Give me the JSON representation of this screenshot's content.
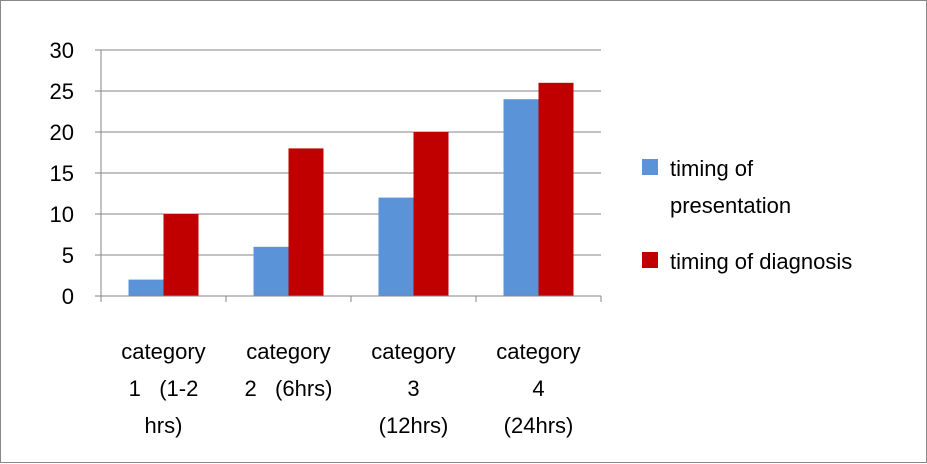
{
  "chart_data": {
    "type": "bar",
    "categories": [
      "category 1 (1-2 hrs)",
      "category 2 (6hrs)",
      "category 3 (12hrs)",
      "category 4 (24hrs)"
    ],
    "category_label_lines": [
      [
        "category",
        "1   (1-2",
        "hrs)"
      ],
      [
        "category",
        "2   (6hrs)"
      ],
      [
        "category",
        "3",
        "(12hrs)"
      ],
      [
        "category",
        "4",
        "(24hrs)"
      ]
    ],
    "series": [
      {
        "name": "timing of presentation",
        "legend_lines": [
          "timing of",
          "presentation"
        ],
        "color": "#5b93d9",
        "values": [
          2,
          6,
          12,
          24
        ]
      },
      {
        "name": "timing of diagnosis",
        "legend_lines": [
          "timing of diagnosis"
        ],
        "color": "#c00000",
        "values": [
          10,
          18,
          20,
          26
        ]
      }
    ],
    "yticks": [
      0,
      5,
      10,
      15,
      20,
      25,
      30
    ],
    "ylim": [
      0,
      30
    ],
    "grid": true,
    "legend_position": "right"
  }
}
